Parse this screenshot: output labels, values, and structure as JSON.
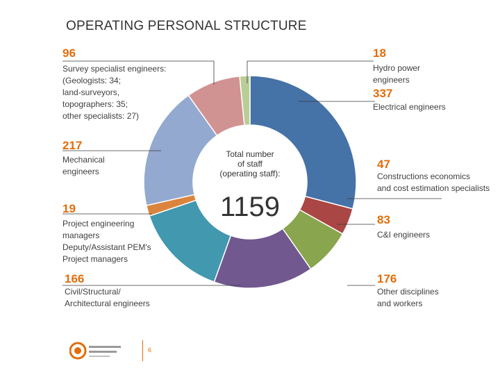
{
  "title": "OPERATING PERSONAL STRUCTURE",
  "center": {
    "label": "Total number\nof staff\n(operating staff):",
    "total": "1159"
  },
  "labels": [
    {
      "value": "96",
      "desc": "Survey specialist engineers:\n(Geologists: 34;\nland-surveyors,\ntopographers: 35;\nother specialists: 27)"
    },
    {
      "value": "18",
      "desc": "Hydro power\nengineers"
    },
    {
      "value": "337",
      "desc": "Electrical engineers"
    },
    {
      "value": "217",
      "desc": "Mechanical\nengineers"
    },
    {
      "value": "47",
      "desc": "Constructions economics\nand cost estimation specialists"
    },
    {
      "value": "19",
      "desc": "Project engineering\nmanagers\nDeputy/Assistant PEM's\nProject managers"
    },
    {
      "value": "83",
      "desc": "C&I engineers"
    },
    {
      "value": "166",
      "desc": "Civil/Structural/\nArchitectural engineers"
    },
    {
      "value": "176",
      "desc": "Other disciplines\nand workers"
    }
  ],
  "footer": {
    "page": "6"
  },
  "chart_data": {
    "type": "pie",
    "donut": true,
    "title": "OPERATING PERSONAL STRUCTURE",
    "slices": [
      {
        "label": "Electrical engineers",
        "value": 337,
        "color": "#4572a7"
      },
      {
        "label": "Constructions economics and cost estimation specialists",
        "value": 47,
        "color": "#aa4643"
      },
      {
        "label": "C&I engineers",
        "value": 83,
        "color": "#89a54e"
      },
      {
        "label": "Other disciplines and workers",
        "value": 176,
        "color": "#71588f"
      },
      {
        "label": "Civil/Structural/Architectural engineers",
        "value": 166,
        "color": "#4198af"
      },
      {
        "label": "Project engineering managers",
        "value": 19,
        "color": "#db843d"
      },
      {
        "label": "Mechanical engineers",
        "value": 217,
        "color": "#93a9cf"
      },
      {
        "label": "Survey specialist engineers",
        "value": 96,
        "color": "#d19392"
      },
      {
        "label": "Hydro power engineers",
        "value": 18,
        "color": "#b9cd96"
      }
    ]
  }
}
